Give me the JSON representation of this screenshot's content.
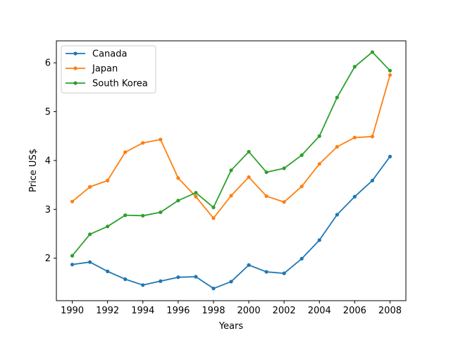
{
  "chart_data": {
    "type": "line",
    "title": "",
    "xlabel": "Years",
    "ylabel": "Price US$",
    "xlim": [
      1989.1,
      2008.9
    ],
    "ylim": [
      1.13,
      6.45
    ],
    "x_ticks": [
      1990,
      1992,
      1994,
      1996,
      1998,
      2000,
      2002,
      2004,
      2006,
      2008
    ],
    "y_ticks": [
      2,
      3,
      4,
      5,
      6
    ],
    "grid": false,
    "legend_position": "top-left",
    "x": [
      1990,
      1991,
      1992,
      1993,
      1994,
      1995,
      1996,
      1997,
      1998,
      1999,
      2000,
      2001,
      2002,
      2003,
      2004,
      2005,
      2006,
      2007,
      2008
    ],
    "series": [
      {
        "name": "Canada",
        "color": "#1f77b4",
        "values": [
          1.87,
          1.92,
          1.73,
          1.57,
          1.45,
          1.53,
          1.61,
          1.62,
          1.38,
          1.52,
          1.86,
          1.72,
          1.69,
          1.99,
          2.37,
          2.89,
          3.26,
          3.59,
          4.08
        ]
      },
      {
        "name": "Japan",
        "color": "#ff7f0e",
        "values": [
          3.16,
          3.46,
          3.59,
          4.17,
          4.36,
          4.43,
          3.64,
          3.26,
          2.82,
          3.28,
          3.66,
          3.27,
          3.15,
          3.47,
          3.93,
          4.28,
          4.47,
          4.49,
          5.75
        ]
      },
      {
        "name": "South Korea",
        "color": "#2ca02c",
        "values": [
          2.05,
          2.49,
          2.65,
          2.88,
          2.87,
          2.94,
          3.18,
          3.34,
          3.04,
          3.8,
          4.18,
          3.76,
          3.84,
          4.11,
          4.5,
          5.29,
          5.92,
          6.22,
          5.84
        ]
      }
    ]
  }
}
